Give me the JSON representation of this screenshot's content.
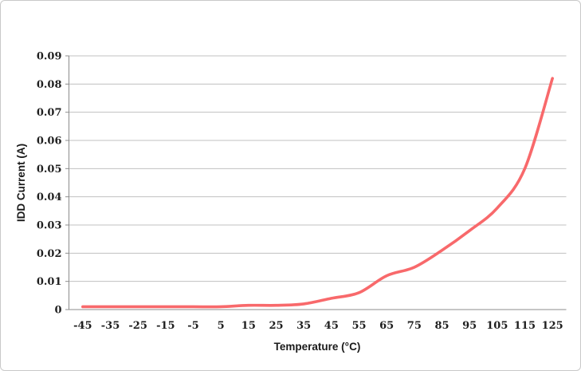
{
  "chart": {
    "x_axis_title": "Temperature (°C)",
    "y_axis_title": "IDD Current (A)",
    "colors": {
      "line": "#F8696B",
      "gridline": "#C0C0C0",
      "axis": "#8C8C8C",
      "text": "#1F1F1F",
      "frame": "#C9C9C9",
      "background": "#FFFFFF"
    }
  },
  "chart_data": {
    "type": "line",
    "title": "",
    "xlabel": "Temperature (°C)",
    "ylabel": "IDD Current (A)",
    "x": [
      -45,
      -35,
      -25,
      -15,
      -5,
      5,
      15,
      25,
      35,
      45,
      55,
      65,
      75,
      85,
      95,
      105,
      115,
      125
    ],
    "series": [
      {
        "name": "IDD Current",
        "values": [
          0.001,
          0.001,
          0.001,
          0.001,
          0.001,
          0.001,
          0.0015,
          0.0015,
          0.002,
          0.004,
          0.006,
          0.012,
          0.015,
          0.021,
          0.028,
          0.036,
          0.05,
          0.082
        ]
      }
    ],
    "ylim": [
      0,
      0.09
    ],
    "y_tick_step": 0.01,
    "grid": true,
    "legend": false,
    "smooth": true
  }
}
